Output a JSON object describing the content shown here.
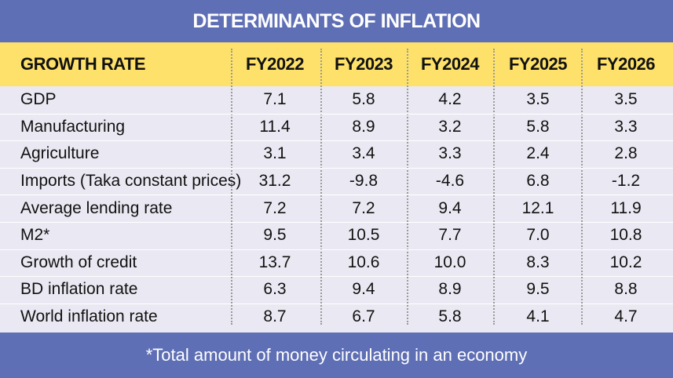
{
  "title": "DETERMINANTS OF INFLATION",
  "footnote": "*Total amount of money circulating in an economy",
  "colors": {
    "frame": "#5f6fb5",
    "header": "#fde16a",
    "table_body": "#eae9f3",
    "text": "#111111"
  },
  "chart_data": {
    "type": "table",
    "title": "DETERMINANTS OF INFLATION",
    "columns": [
      "GROWTH RATE",
      "FY2022",
      "FY2023",
      "FY2024",
      "FY2025",
      "FY2026"
    ],
    "rows": [
      {
        "label": "GDP",
        "values": [
          "7.1",
          "5.8",
          "4.2",
          "3.5",
          "3.5"
        ]
      },
      {
        "label": "Manufacturing",
        "values": [
          "11.4",
          "8.9",
          "3.2",
          "5.8",
          "3.3"
        ]
      },
      {
        "label": "Agriculture",
        "values": [
          "3.1",
          "3.4",
          "3.3",
          "2.4",
          "2.8"
        ]
      },
      {
        "label": "Imports (Taka constant prices)",
        "values": [
          "31.2",
          "-9.8",
          "-4.6",
          "6.8",
          "-1.2"
        ]
      },
      {
        "label": "Average lending rate",
        "values": [
          "7.2",
          "7.2",
          "9.4",
          "12.1",
          "11.9"
        ]
      },
      {
        "label": "M2*",
        "values": [
          "9.5",
          "10.5",
          "7.7",
          "7.0",
          "10.8"
        ]
      },
      {
        "label": "Growth of credit",
        "values": [
          "13.7",
          "10.6",
          "10.0",
          "8.3",
          "10.2"
        ]
      },
      {
        "label": "BD inflation rate",
        "values": [
          "6.3",
          "9.4",
          "8.9",
          "9.5",
          "8.8"
        ]
      },
      {
        "label": "World inflation rate",
        "values": [
          "8.7",
          "6.7",
          "5.8",
          "4.1",
          "4.7"
        ]
      }
    ],
    "footnote": "*Total amount of money circulating in an economy"
  }
}
